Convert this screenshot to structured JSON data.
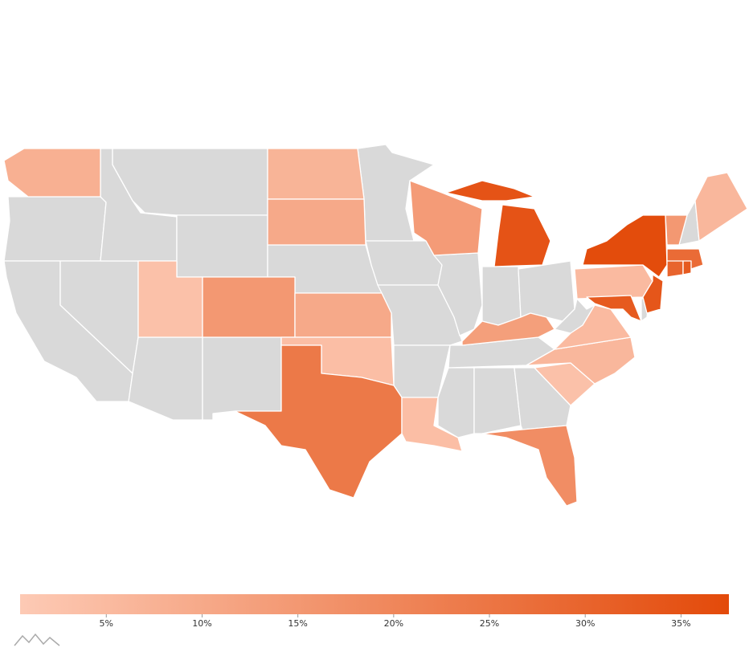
{
  "chart_data": {
    "type": "choropleth",
    "values": [
      8,
      7,
      10,
      3,
      15,
      10,
      4,
      24,
      4,
      14,
      35,
      13,
      18,
      3,
      6,
      5,
      5,
      37,
      15,
      6,
      28,
      30,
      33,
      34,
      33
    ],
    "colorlim": [
      0.5,
      37.5
    ],
    "color_range": [
      "#fdcab5",
      "#e34a0a"
    ],
    "missing_color": "#d9d9d9",
    "ticks": [
      {
        "value": 5,
        "label": "5%"
      },
      {
        "value": 10,
        "label": "10%"
      },
      {
        "value": 15,
        "label": "15%"
      },
      {
        "value": 20,
        "label": "20%"
      },
      {
        "value": 25,
        "label": "25%"
      },
      {
        "value": 30,
        "label": "30%"
      },
      {
        "value": 35,
        "label": "35%"
      }
    ]
  }
}
